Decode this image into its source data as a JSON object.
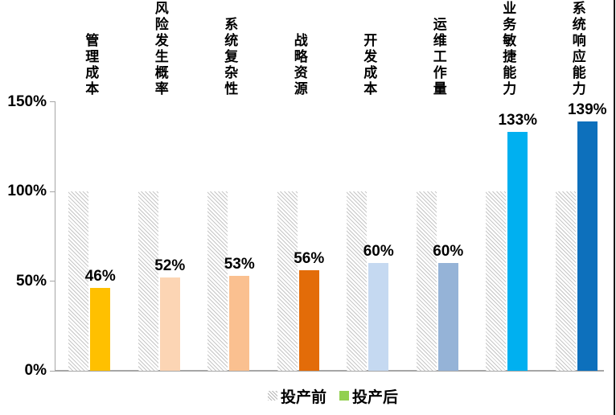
{
  "chart_data": {
    "type": "bar",
    "title": "",
    "categories": [
      "管理成本",
      "风险发生概率",
      "系统复杂性",
      "战略资源",
      "开发成本",
      "运维工作量",
      "业务敏捷能力",
      "系统响应能力"
    ],
    "series": [
      {
        "name": "投产前",
        "values": [
          100,
          100,
          100,
          100,
          100,
          100,
          100,
          100
        ],
        "style": "hatched-gray"
      },
      {
        "name": "投产后",
        "values": [
          46,
          52,
          53,
          56,
          60,
          60,
          133,
          139
        ],
        "colors": [
          "#FFC000",
          "#FCD5B4",
          "#FAC090",
          "#E36C09",
          "#C5D9F1",
          "#95B3D7",
          "#00B0F0",
          "#0D70BC"
        ]
      }
    ],
    "value_labels": [
      "46%",
      "52%",
      "53%",
      "56%",
      "60%",
      "60%",
      "133%",
      "139%"
    ],
    "xlabel": "",
    "ylabel": "",
    "ylim": [
      0,
      150
    ],
    "yticks": [
      {
        "label": "0%",
        "value": 0
      },
      {
        "label": "50%",
        "value": 50
      },
      {
        "label": "100%",
        "value": 100
      },
      {
        "label": "150%",
        "value": 150
      }
    ],
    "grid": false,
    "legend_position": "bottom-center"
  },
  "legend": {
    "before_label": "投产前",
    "after_label": "投产后",
    "before_swatch_style": "hatched-gray",
    "after_swatch_color": "#92D050"
  },
  "colors": {
    "axis": "#a6a6a6",
    "hatch_line": "#c6c6c6",
    "text": "#000000",
    "background": "#ffffff",
    "right_border": "#151515"
  }
}
